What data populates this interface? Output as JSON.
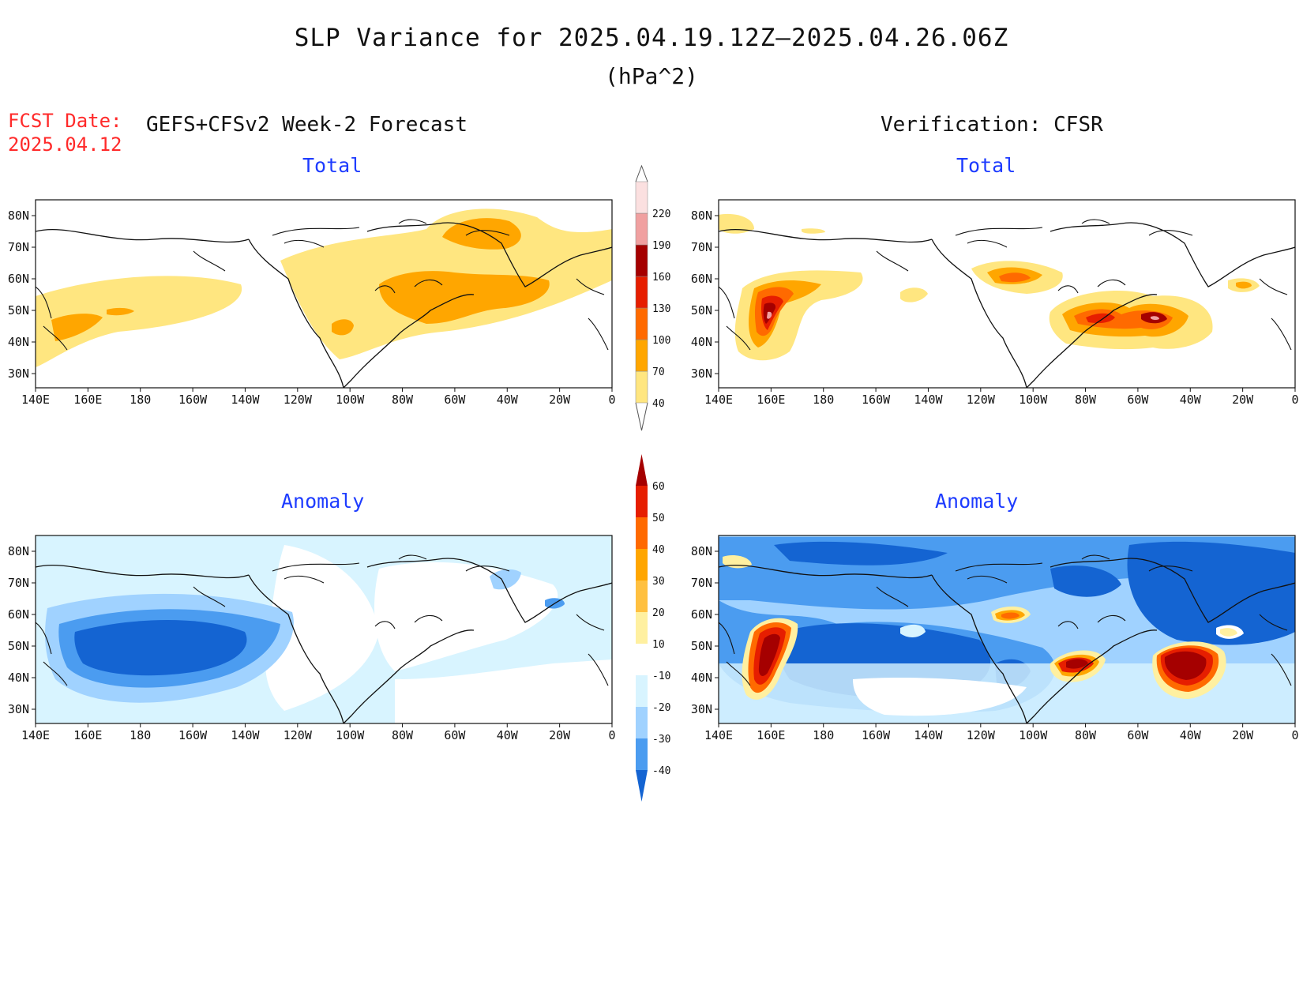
{
  "title": "SLP Variance for 2025.04.19.12Z–2025.04.26.06Z",
  "units": "(hPa^2)",
  "fcst_date_label": "FCST Date:",
  "fcst_date_value": "2025.04.12",
  "left_header": "GEFS+CFSv2 Week-2 Forecast",
  "right_header": "Verification: CFSR",
  "panels": {
    "top_left": "Total",
    "top_right": "Total",
    "bottom_left": "Anomaly",
    "bottom_right": "Anomaly"
  },
  "axes": {
    "lat_labels": [
      "80N",
      "70N",
      "60N",
      "50N",
      "40N",
      "30N"
    ],
    "lon_labels": [
      "140E",
      "160E",
      "180",
      "160W",
      "140W",
      "120W",
      "100W",
      "80W",
      "60W",
      "40W",
      "20W",
      "0"
    ]
  },
  "colorbars": {
    "total": {
      "levels": [
        "40",
        "70",
        "100",
        "130",
        "160",
        "190",
        "220"
      ],
      "colors": [
        "#ffe680",
        "#ffa600",
        "#ff6a00",
        "#e61e00",
        "#a50000",
        "#f0a0a0",
        "#fbe0e0"
      ]
    },
    "anomaly": {
      "levels": [
        "60",
        "50",
        "40",
        "30",
        "20",
        "10",
        "-10",
        "-20",
        "-30",
        "-40"
      ],
      "colors": {
        "above_60": "#a50000",
        "50_60": "#e61e00",
        "40_50": "#ff6a00",
        "30_40": "#ffa600",
        "20_30": "#ffc040",
        "10_20": "#fff0a0",
        "neutral": "#ffffff",
        "m10_m20": "#d8f4ff",
        "m20_m30": "#a0d2ff",
        "m30_m40": "#4b9cf0",
        "below_m40": "#1464d2"
      }
    }
  }
}
